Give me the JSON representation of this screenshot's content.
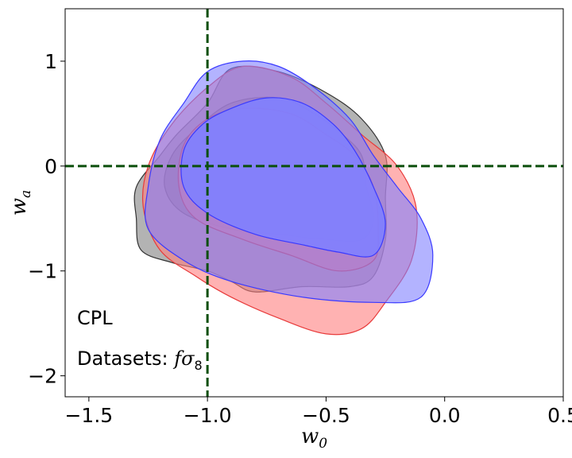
{
  "chart_data": {
    "type": "contour",
    "title": "",
    "xlabel": "w",
    "xlabel_sub": "0",
    "ylabel": "w",
    "ylabel_sub": "a",
    "xlim": [
      -1.6,
      0.5
    ],
    "ylim": [
      -2.2,
      1.5
    ],
    "xticks": [
      -1.5,
      -1.0,
      -0.5,
      0.0,
      0.5
    ],
    "xtick_labels": [
      "−1.5",
      "−1.0",
      "−0.5",
      "0.0",
      "0.5"
    ],
    "yticks": [
      -2,
      -1,
      0,
      1
    ],
    "ytick_labels": [
      "−2",
      "−1",
      "0",
      "1"
    ],
    "reference_lines": {
      "x": -1.0,
      "y": 0,
      "color": "#0b4f0b",
      "style": "dashed"
    },
    "annotations": {
      "model": "CPL",
      "datasets_prefix": "Datasets: ",
      "datasets_math_f": "f",
      "datasets_math_sigma": "σ",
      "datasets_math_sub": "8"
    },
    "series": [
      {
        "color": "#808080",
        "edge": "#333333",
        "outer": [
          [
            -0.9,
            0.93
          ],
          [
            -0.7,
            0.9
          ],
          [
            -0.5,
            0.7
          ],
          [
            -0.35,
            0.45
          ],
          [
            -0.25,
            0.1
          ],
          [
            -0.25,
            -0.3
          ],
          [
            -0.25,
            -0.7
          ],
          [
            -0.3,
            -1.05
          ],
          [
            -0.4,
            -1.15
          ],
          [
            -0.6,
            -1.15
          ],
          [
            -0.8,
            -1.2
          ],
          [
            -0.9,
            -1.1
          ],
          [
            -1.0,
            -1.0
          ],
          [
            -1.15,
            -0.92
          ],
          [
            -1.28,
            -0.8
          ],
          [
            -1.3,
            -0.5
          ],
          [
            -1.3,
            -0.2
          ],
          [
            -1.2,
            0.1
          ],
          [
            -1.13,
            0.3
          ],
          [
            -1.0,
            0.6
          ]
        ],
        "inner": [
          [
            -0.9,
            0.6
          ],
          [
            -0.7,
            0.65
          ],
          [
            -0.55,
            0.5
          ],
          [
            -0.43,
            0.3
          ],
          [
            -0.35,
            0.1
          ],
          [
            -0.33,
            -0.2
          ],
          [
            -0.3,
            -0.5
          ],
          [
            -0.35,
            -0.7
          ],
          [
            -0.5,
            -0.7
          ],
          [
            -0.7,
            -0.65
          ],
          [
            -0.9,
            -0.6
          ],
          [
            -1.1,
            -0.45
          ],
          [
            -1.18,
            -0.2
          ],
          [
            -1.15,
            0.1
          ],
          [
            -1.05,
            0.35
          ]
        ]
      },
      {
        "color": "#ff7f7f",
        "edge": "#e83a3a",
        "outer": [
          [
            -0.85,
            0.95
          ],
          [
            -0.65,
            0.85
          ],
          [
            -0.5,
            0.6
          ],
          [
            -0.35,
            0.3
          ],
          [
            -0.2,
            0.0
          ],
          [
            -0.12,
            -0.4
          ],
          [
            -0.14,
            -0.9
          ],
          [
            -0.25,
            -1.3
          ],
          [
            -0.35,
            -1.55
          ],
          [
            -0.5,
            -1.6
          ],
          [
            -0.7,
            -1.45
          ],
          [
            -0.9,
            -1.25
          ],
          [
            -1.05,
            -1.05
          ],
          [
            -1.2,
            -0.8
          ],
          [
            -1.27,
            -0.4
          ],
          [
            -1.25,
            0.0
          ],
          [
            -1.15,
            0.4
          ],
          [
            -1.0,
            0.75
          ]
        ],
        "inner": [
          [
            -0.85,
            0.55
          ],
          [
            -0.65,
            0.5
          ],
          [
            -0.5,
            0.3
          ],
          [
            -0.38,
            0.1
          ],
          [
            -0.3,
            -0.2
          ],
          [
            -0.28,
            -0.6
          ],
          [
            -0.3,
            -0.9
          ],
          [
            -0.45,
            -1.0
          ],
          [
            -0.65,
            -0.85
          ],
          [
            -0.85,
            -0.7
          ],
          [
            -1.05,
            -0.5
          ],
          [
            -1.12,
            -0.2
          ],
          [
            -1.1,
            0.2
          ],
          [
            -1.0,
            0.45
          ]
        ]
      },
      {
        "color": "#8080ff",
        "edge": "#3a3aff",
        "outer": [
          [
            -1.0,
            0.9
          ],
          [
            -0.85,
            1.0
          ],
          [
            -0.7,
            0.95
          ],
          [
            -0.55,
            0.75
          ],
          [
            -0.4,
            0.45
          ],
          [
            -0.3,
            0.1
          ],
          [
            -0.2,
            -0.2
          ],
          [
            -0.1,
            -0.5
          ],
          [
            -0.05,
            -0.85
          ],
          [
            -0.1,
            -1.25
          ],
          [
            -0.3,
            -1.3
          ],
          [
            -0.6,
            -1.25
          ],
          [
            -0.9,
            -1.1
          ],
          [
            -1.1,
            -0.9
          ],
          [
            -1.25,
            -0.6
          ],
          [
            -1.25,
            -0.2
          ],
          [
            -1.2,
            0.25
          ],
          [
            -1.1,
            0.6
          ]
        ],
        "inner": [
          [
            -0.9,
            0.55
          ],
          [
            -0.75,
            0.65
          ],
          [
            -0.6,
            0.6
          ],
          [
            -0.47,
            0.4
          ],
          [
            -0.38,
            0.15
          ],
          [
            -0.3,
            -0.2
          ],
          [
            -0.25,
            -0.55
          ],
          [
            -0.3,
            -0.85
          ],
          [
            -0.45,
            -0.82
          ],
          [
            -0.6,
            -0.75
          ],
          [
            -0.8,
            -0.65
          ],
          [
            -1.0,
            -0.45
          ],
          [
            -1.1,
            -0.2
          ],
          [
            -1.1,
            0.15
          ],
          [
            -1.02,
            0.4
          ]
        ]
      }
    ]
  }
}
